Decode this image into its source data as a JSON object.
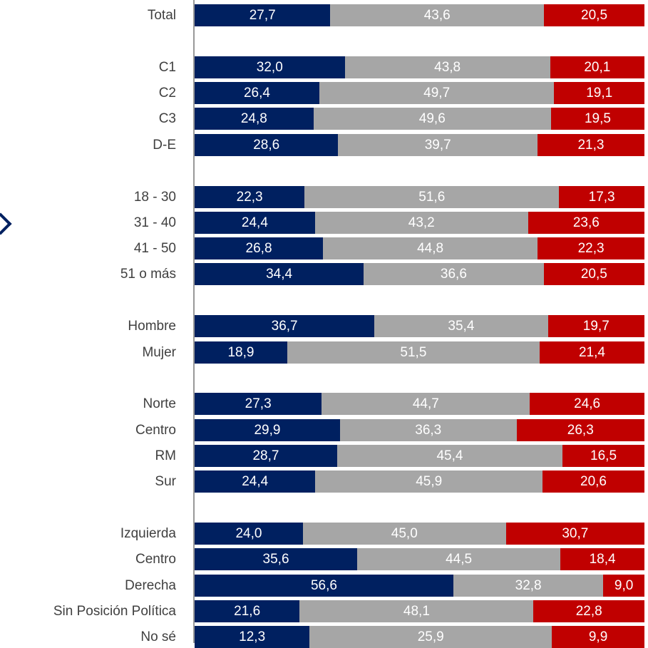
{
  "colors": {
    "series1": "#002060",
    "series2": "#a6a6a6",
    "series3": "#c00000",
    "axis": "#999999",
    "label": "#404040"
  },
  "chart_data": {
    "type": "bar",
    "orientation": "horizontal",
    "stacked": true,
    "categories": [
      "Total",
      "C1",
      "C2",
      "C3",
      "D-E",
      "18 - 30",
      "31 - 40",
      "41 - 50",
      "51 o más",
      "Hombre",
      "Mujer",
      "Norte",
      "Centro",
      "RM",
      "Sur",
      "Izquierda",
      "Centro ",
      "Derecha",
      "Sin Posición Política",
      "No sé"
    ],
    "groups": [
      [
        "Total"
      ],
      [
        "C1",
        "C2",
        "C3",
        "D-E"
      ],
      [
        "18 - 30",
        "31 - 40",
        "41 - 50",
        "51 o más"
      ],
      [
        "Hombre",
        "Mujer"
      ],
      [
        "Norte",
        "Centro",
        "RM",
        "Sur"
      ],
      [
        "Izquierda",
        "Centro ",
        "Derecha",
        "Sin Posición Política",
        "No sé"
      ]
    ],
    "series": [
      {
        "values": [
          "27,7",
          "32,0",
          "26,4",
          "24,8",
          "28,6",
          "22,3",
          "24,4",
          "26,8",
          "34,4",
          "36,7",
          "18,9",
          "27,3",
          "29,9",
          "28,7",
          "24,4",
          "24,0",
          "35,6",
          "56,6",
          "21,6",
          "12,3"
        ]
      },
      {
        "values": [
          "43,6",
          "43,8",
          "49,7",
          "49,6",
          "39,7",
          "51,6",
          "43,2",
          "44,8",
          "36,6",
          "35,4",
          "51,5",
          "44,7",
          "36,3",
          "45,4",
          "45,9",
          "45,0",
          "44,5",
          "32,8",
          "48,1",
          "25,9"
        ]
      },
      {
        "values": [
          "20,5",
          "20,1",
          "19,1",
          "19,5",
          "21,3",
          "17,3",
          "23,6",
          "22,3",
          "20,5",
          "19,7",
          "21,4",
          "24,6",
          "26,3",
          "16,5",
          "20,6",
          "30,7",
          "18,4",
          "9,0",
          "22,8",
          "9,9"
        ]
      }
    ],
    "legend": "none",
    "grid": false
  }
}
